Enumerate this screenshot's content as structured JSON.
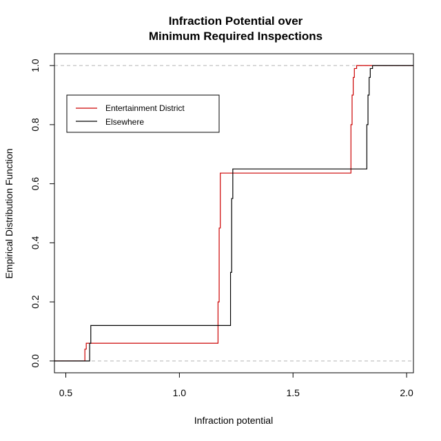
{
  "chart_data": {
    "type": "line",
    "title_line1": "Infraction Potential over",
    "title_line2": "Minimum Required Inspections",
    "xlabel": "Infraction potential",
    "ylabel": "Empirical Distribution Function",
    "xlim": [
      0.45,
      2.03
    ],
    "ylim": [
      -0.04,
      1.04
    ],
    "x_ticks": [
      0.5,
      1.0,
      1.5,
      2.0
    ],
    "x_tick_labels": [
      "0.5",
      "1.0",
      "1.5",
      "2.0"
    ],
    "y_ticks": [
      0.0,
      0.2,
      0.4,
      0.6,
      0.8,
      1.0
    ],
    "y_tick_labels": [
      "0.0",
      "0.2",
      "0.4",
      "0.6",
      "0.8",
      "1.0"
    ],
    "reference_lines": [
      0,
      1
    ],
    "legend_position": "top-left",
    "series": [
      {
        "name": "Entertainment District",
        "color": "#cc0000",
        "x": [
          0.45,
          0.58,
          0.584,
          0.59,
          1.165,
          1.17,
          1.175,
          1.18,
          1.75,
          1.755,
          1.76,
          1.765,
          1.77,
          1.78,
          2.03
        ],
        "y": [
          0.0,
          0.0,
          0.04,
          0.06,
          0.06,
          0.2,
          0.45,
          0.636,
          0.636,
          0.8,
          0.9,
          0.96,
          0.99,
          1.0,
          1.0
        ]
      },
      {
        "name": "Elsewhere",
        "color": "#000000",
        "x": [
          0.45,
          0.6,
          0.605,
          0.61,
          1.22,
          1.225,
          1.23,
          1.235,
          1.82,
          1.825,
          1.83,
          1.835,
          1.84,
          1.85,
          2.03
        ],
        "y": [
          0.0,
          0.0,
          0.06,
          0.12,
          0.12,
          0.3,
          0.55,
          0.65,
          0.65,
          0.8,
          0.9,
          0.96,
          0.99,
          1.0,
          1.0
        ]
      }
    ]
  }
}
